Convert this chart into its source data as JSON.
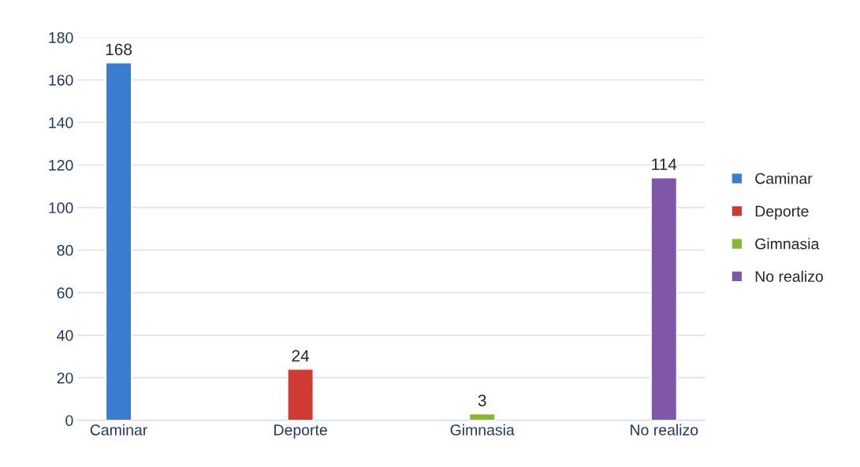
{
  "chart_data": {
    "type": "bar",
    "categories": [
      "Caminar",
      "Deporte",
      "Gimnasia",
      "No realizo"
    ],
    "series": [
      {
        "name": "Caminar",
        "color": "#3a7dd0",
        "values": [
          168,
          null,
          null,
          null
        ]
      },
      {
        "name": "Deporte",
        "color": "#d03a35",
        "values": [
          null,
          24,
          null,
          null
        ]
      },
      {
        "name": "Gimnasia",
        "color": "#8ab536",
        "values": [
          null,
          null,
          3,
          null
        ]
      },
      {
        "name": "No realizo",
        "color": "#7e57a8",
        "values": [
          null,
          null,
          null,
          114
        ]
      }
    ],
    "ylim": [
      0,
      180
    ],
    "yticks": [
      0,
      20,
      40,
      60,
      80,
      100,
      120,
      140,
      160,
      180
    ],
    "grid": "y",
    "legend": "right",
    "data_labels": true
  }
}
